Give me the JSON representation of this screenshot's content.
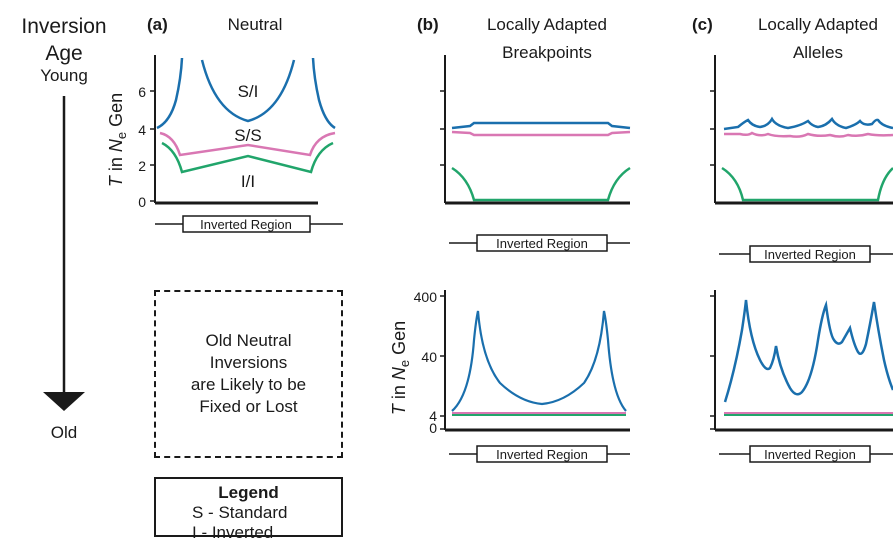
{
  "axis_labels": {
    "age_title_line1": "Inversion",
    "age_title_line2": "Age",
    "young": "Young",
    "old": "Old",
    "y_label_T": "T",
    "y_label_in": " in ",
    "y_label_N": "N",
    "y_label_sub": "e",
    "y_label_gen": " Gen"
  },
  "panels": {
    "a": {
      "letter": "(a)",
      "title": "Neutral"
    },
    "b": {
      "letter": "(b)",
      "title_line1": "Locally Adapted",
      "title_line2": "Breakpoints"
    },
    "c": {
      "letter": "(c)",
      "title_line1": "Locally Adapted",
      "title_line2": "Alleles"
    }
  },
  "region_label": "Inverted Region",
  "top_ticks": [
    "0",
    "2",
    "4",
    "6"
  ],
  "bottom_ticks": [
    "0",
    "4",
    "40",
    "400"
  ],
  "curve_labels": {
    "si": "S/I",
    "ss": "S/S",
    "ii": "I/I"
  },
  "old_neutral": [
    "Old Neutral",
    "Inversions",
    "are Likely to be",
    "Fixed or Lost"
  ],
  "legend": {
    "title": "Legend",
    "rows": [
      "S -  Standard",
      "I  -  Inverted"
    ]
  },
  "colors": {
    "si": "#1a6fad",
    "ss": "#d977b3",
    "ii": "#21a56b",
    "axis": "#1a1a1a"
  }
}
